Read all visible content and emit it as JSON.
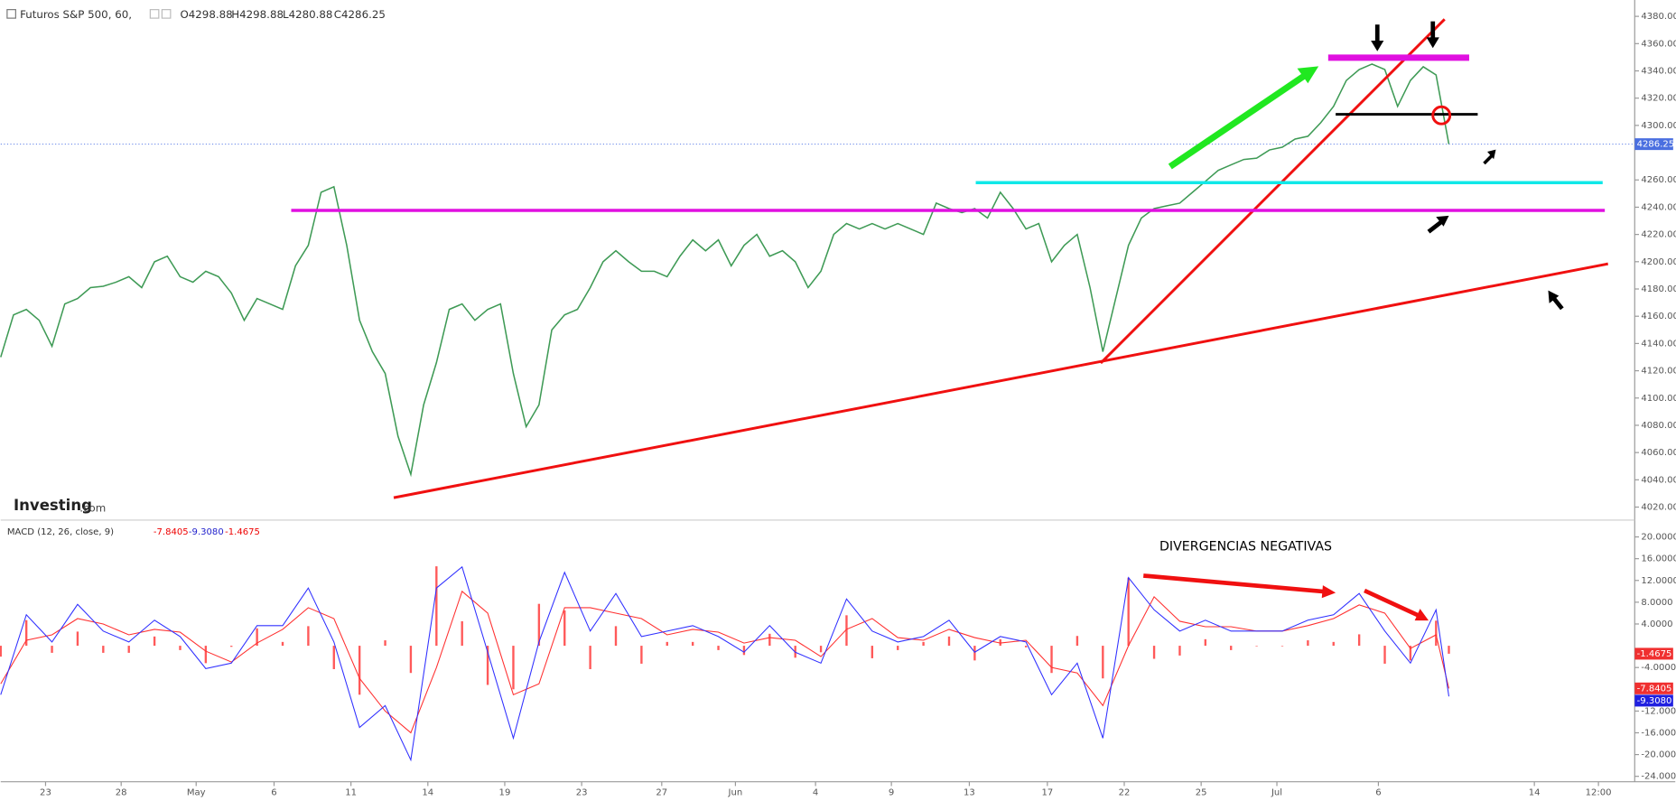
{
  "logo": {
    "brand": "Investing",
    "suffix": ".com"
  },
  "chart_data": [
    {
      "type": "line",
      "title": "Futuros S&P 500, 60,",
      "ohlc": [
        "O4298.88",
        "H4298.88",
        "L4280.88",
        "C4286.25"
      ],
      "series": [
        {
          "color": "#3e9a55",
          "values": [
            4130,
            4161,
            4165,
            4157,
            4138,
            4169,
            4173,
            4181,
            4182,
            4185,
            4189,
            4181,
            4200,
            4204,
            4189,
            4185,
            4193,
            4189,
            4177,
            4157,
            4173,
            4169,
            4165,
            4197,
            4212,
            4251,
            4255,
            4212,
            4157,
            4134,
            4118,
            4072,
            4044,
            4095,
            4126,
            4165,
            4169,
            4157,
            4165,
            4169,
            4118,
            4079,
            4095,
            4150,
            4161,
            4165,
            4181,
            4200,
            4208,
            4200,
            4193,
            4193,
            4189,
            4204,
            4216,
            4208,
            4216,
            4197,
            4212,
            4220,
            4204,
            4208,
            4200,
            4181,
            4193,
            4220,
            4228,
            4224,
            4228,
            4224,
            4228,
            4224,
            4220,
            4243,
            4239,
            4236,
            4239,
            4232,
            4251,
            4239,
            4224,
            4228,
            4200,
            4212,
            4220,
            4181,
            4134,
            4173,
            4212,
            4232,
            4239,
            4241,
            4243,
            4251,
            4259,
            4267,
            4271,
            4275,
            4276,
            4282,
            4284,
            4290,
            4292,
            4302,
            4314,
            4333,
            4341,
            4345,
            4341,
            4314,
            4333,
            4343,
            4337,
            4286.25
          ]
        }
      ],
      "xlim": [
        0,
        127.5
      ],
      "ylim": [
        4012,
        4392
      ],
      "yticks": [
        {
          "value": 4380,
          "label": "4380.00"
        },
        {
          "value": 4360,
          "label": "4360.00"
        },
        {
          "value": 4340,
          "label": "4340.00"
        },
        {
          "value": 4320,
          "label": "4320.00"
        },
        {
          "value": 4300,
          "label": "4300.00"
        },
        {
          "value": 4260,
          "label": "4260.00"
        },
        {
          "value": 4240,
          "label": "4240.00"
        },
        {
          "value": 4220,
          "label": "4220.00"
        },
        {
          "value": 4200,
          "label": "4200.00"
        },
        {
          "value": 4180,
          "label": "4180.00"
        },
        {
          "value": 4160,
          "label": "4160.00"
        },
        {
          "value": 4140,
          "label": "4140.00"
        },
        {
          "value": 4120,
          "label": "4120.00"
        },
        {
          "value": 4100,
          "label": "4100.00"
        },
        {
          "value": 4080,
          "label": "4080.00"
        },
        {
          "value": 4060,
          "label": "4060.00"
        },
        {
          "value": 4040,
          "label": "4040.00"
        },
        {
          "value": 4020,
          "label": "4020.00"
        }
      ],
      "xticks": [
        {
          "value": 3.5,
          "label": "23"
        },
        {
          "value": 9.4,
          "label": "28"
        },
        {
          "value": 15.25,
          "label": "May"
        },
        {
          "value": 21.33,
          "label": "6"
        },
        {
          "value": 27.33,
          "label": "11"
        },
        {
          "value": 33.33,
          "label": "14"
        },
        {
          "value": 39.33,
          "label": "19"
        },
        {
          "value": 45.33,
          "label": "23"
        },
        {
          "value": 51.58,
          "label": "27"
        },
        {
          "value": 57.33,
          "label": "Jun"
        },
        {
          "value": 63.58,
          "label": "4"
        },
        {
          "value": 69.5,
          "label": "9"
        },
        {
          "value": 75.58,
          "label": "13"
        },
        {
          "value": 81.67,
          "label": "17"
        },
        {
          "value": 87.67,
          "label": "22"
        },
        {
          "value": 93.67,
          "label": "25"
        },
        {
          "value": 99.58,
          "label": "Jul"
        },
        {
          "value": 107.5,
          "label": "6"
        },
        {
          "value": 119.67,
          "label": "14"
        },
        {
          "value": 124.67,
          "label": "12:00"
        }
      ]
    },
    {
      "type": "macd",
      "title": "MACD (12, 26, close, 9)",
      "header_values": [
        "-7.8405",
        "-9.3080",
        "-1.4675"
      ],
      "annotation": "DIVERGENCIAS NEGATIVAS",
      "x": [
        0,
        2,
        4,
        6,
        8,
        10,
        12,
        14,
        16,
        18,
        20,
        22,
        24,
        26,
        28,
        30,
        32,
        34,
        36,
        38,
        40,
        42,
        44,
        46,
        48,
        50,
        52,
        54,
        56,
        58,
        60,
        62,
        64,
        66,
        68,
        70,
        72,
        74,
        76,
        78,
        80,
        82,
        84,
        86,
        88,
        90,
        92,
        94,
        96,
        98,
        100,
        102,
        104,
        106,
        108,
        110,
        112,
        113
      ],
      "series": [
        {
          "color": "#3030ff",
          "values": [
            -9,
            5.7,
            0.7,
            7.6,
            2.7,
            0.7,
            4.7,
            1.7,
            -4.2,
            -3.2,
            3.7,
            3.7,
            10.6,
            0.7,
            -15,
            -11,
            -21,
            10.6,
            14.5,
            -1.2,
            -17,
            0.7,
            13.5,
            2.7,
            9.6,
            1.7,
            2.7,
            3.7,
            1.7,
            -1.2,
            3.7,
            -1.2,
            -3.2,
            8.6,
            2.7,
            0.7,
            1.7,
            4.7,
            -1.2,
            1.7,
            0.7,
            -9,
            -3.2,
            -17,
            12.5,
            6.6,
            2.7,
            4.7,
            2.7,
            2.7,
            2.7,
            4.7,
            5.7,
            9.6,
            2.7,
            -3.2,
            6.6,
            -9.308
          ]
        },
        {
          "color": "#ff3030",
          "values": [
            -7,
            1,
            2,
            5,
            4,
            2,
            3,
            2.5,
            -1,
            -3,
            0.5,
            3,
            7,
            5,
            -6,
            -12,
            -16,
            -4,
            10,
            6,
            -9,
            -7,
            7,
            7,
            6,
            5,
            2,
            3,
            2.5,
            0.5,
            1.5,
            1,
            -2,
            3,
            5,
            1.5,
            1,
            3,
            1.5,
            0.5,
            1,
            -4,
            -5,
            -11,
            0,
            9,
            4.5,
            3.5,
            3.5,
            2.7,
            2.7,
            3.7,
            5,
            7.5,
            6,
            -0.5,
            2,
            -7.8405
          ]
        },
        {
          "color": "#ff3030",
          "values": [
            -2,
            4.7,
            -1.3,
            2.6,
            -1.3,
            -1.3,
            1.7,
            -0.8,
            -3.2,
            -0.2,
            3.2,
            0.7,
            3.6,
            -4.3,
            -9,
            1,
            -5,
            14.6,
            4.5,
            -7.2,
            -8,
            7.7,
            6.5,
            -4.3,
            3.6,
            -3.3,
            0.7,
            0.7,
            -0.8,
            -1.7,
            2.2,
            -2.2,
            -1.2,
            5.6,
            -2.3,
            -0.8,
            0.7,
            1.7,
            -2.7,
            1.2,
            -0.3,
            -5,
            1.8,
            -6,
            12.5,
            -2.4,
            -1.8,
            1.2,
            -0.8,
            0,
            0,
            1,
            0.7,
            2.1,
            -3.3,
            -2.7,
            4.6,
            -1.4675
          ]
        }
      ],
      "xlim": [
        0,
        127.5
      ],
      "ylim": [
        -25,
        22.5
      ],
      "yticks": [
        {
          "value": 20,
          "label": "20.0000"
        },
        {
          "value": 16,
          "label": "16.0000"
        },
        {
          "value": 12,
          "label": "12.0000"
        },
        {
          "value": 8,
          "label": "8.0000"
        },
        {
          "value": 4,
          "label": "4.0000"
        },
        {
          "value": -4,
          "label": "-4.0000"
        },
        {
          "value": -12,
          "label": "-12.0000"
        },
        {
          "value": -16,
          "label": "-16.0000"
        },
        {
          "value": -20,
          "label": "-20.0000"
        },
        {
          "value": -24,
          "label": "-24.0000"
        }
      ]
    }
  ]
}
